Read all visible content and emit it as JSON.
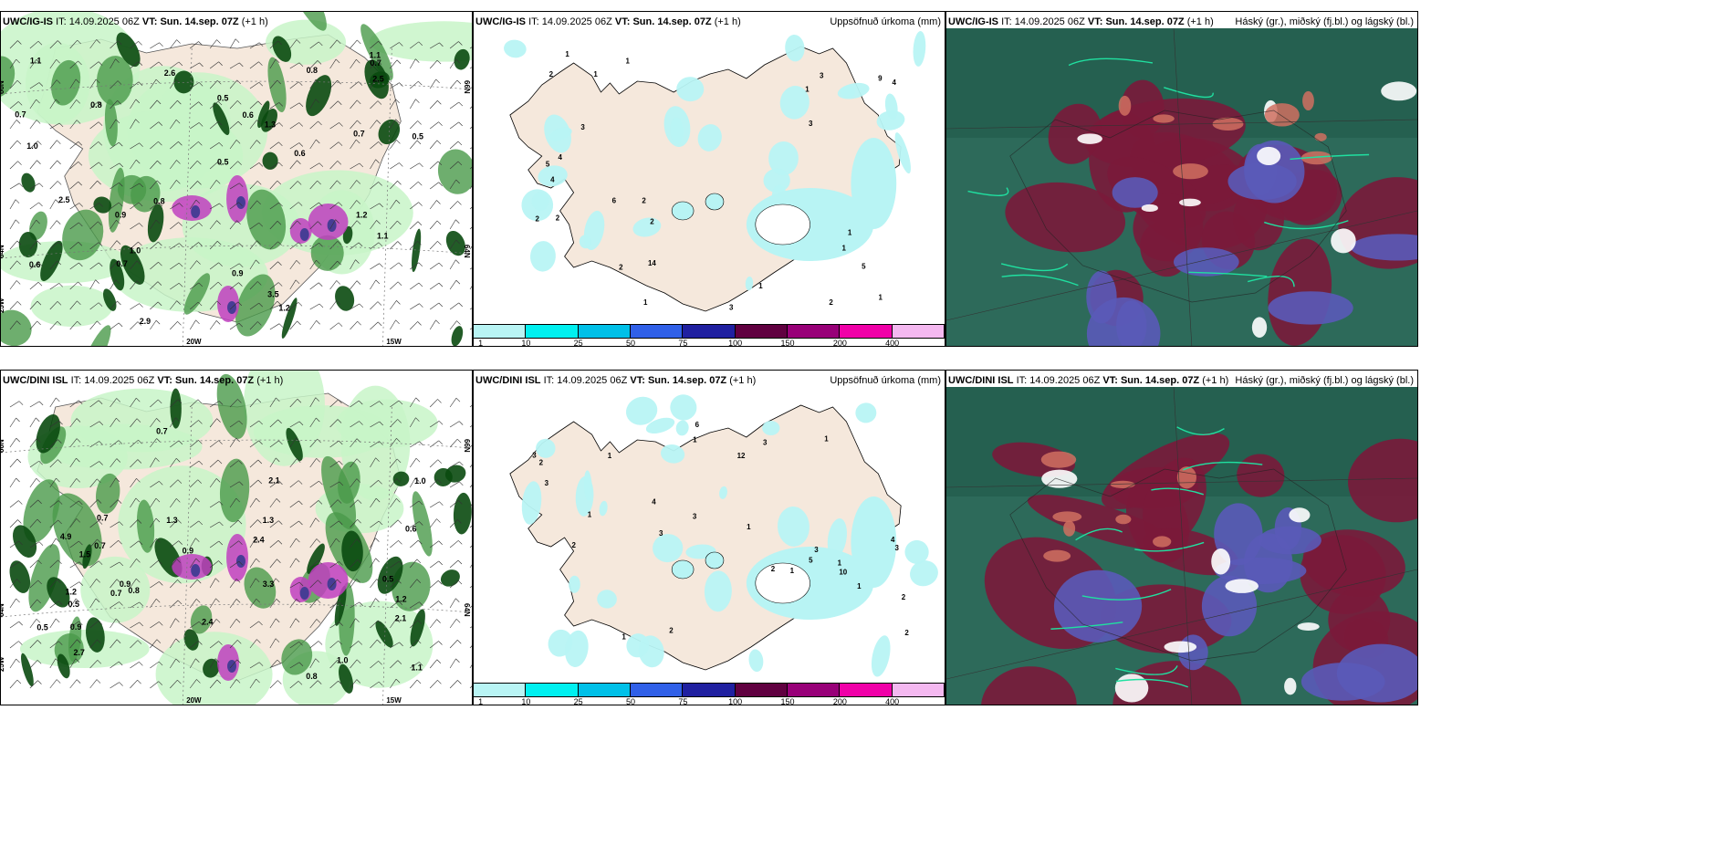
{
  "rows": [
    {
      "model": "UWC/IG-IS",
      "it_label": "IT:",
      "it_value": "14.09.2025 06Z",
      "vt_label": "VT:",
      "vt_value": "Sun. 14.sep. 07Z",
      "lead": "(+1 h)"
    },
    {
      "model": "UWC/DINI ISL",
      "it_label": "IT:",
      "it_value": "14.09.2025 06Z",
      "vt_label": "VT:",
      "vt_value": "Sun. 14.sep. 07Z",
      "lead": "(+1 h)"
    }
  ],
  "precip_title": "Uppsöfnuð úrkoma (mm)",
  "cloud_title": "Háský (gr.), miðský (fj.bl.) og lágský (bl.)",
  "colorbar": {
    "colors": [
      "#b8f4f4",
      "#00f0f0",
      "#00c0e8",
      "#3060e8",
      "#2020a0",
      "#600040",
      "#980078",
      "#f000a8",
      "#f4b8f0"
    ],
    "ticks": [
      "1",
      "10",
      "25",
      "50",
      "75",
      "100",
      "150",
      "200",
      "400"
    ]
  },
  "axis_labels": {
    "lat_66": "66N",
    "lat_64": "64N",
    "lon_25": "25W",
    "lon_20": "20W",
    "lon_15": "15W"
  },
  "colors": {
    "land": "#f5e8dc",
    "light_green": "#c8f4c8",
    "mid_green": "#4a9a4a",
    "dark_green": "#0a4a10",
    "precip_cyan": "#b8f4f4",
    "cloud_teal": "#2d6a5a",
    "cloud_maroon": "#7a1a3a",
    "cloud_blue": "#5a5ab8"
  },
  "wind_labels_top": [
    "2.9",
    "3.5",
    "0.6",
    "0.8",
    "2.6",
    "1.0",
    "0.9",
    "0.6",
    "1.1",
    "2.5",
    "2.5",
    "0.8",
    "1.2",
    "0.9",
    "0.7",
    "0.5",
    "0.8",
    "1.3",
    "1.1",
    "0.7",
    "0.6",
    "0.7",
    "1.1",
    "0.5",
    "1.0",
    "1.2",
    "0.7",
    "0.5"
  ],
  "wind_labels_bottom": [
    "0.7",
    "4.9",
    "2.1",
    "2.4",
    "0.9",
    "1.3",
    "0.5",
    "0.7",
    "2.1",
    "3.3",
    "1.0",
    "0.8",
    "2.7",
    "0.5",
    "1.1",
    "0.9",
    "0.7",
    "0.6",
    "1.2",
    "0.8",
    "2.4",
    "1.0",
    "0.9",
    "0.7",
    "0.5",
    "1.3",
    "1.5",
    "1.2"
  ],
  "precip_labels_top": [
    "1",
    "5",
    "2",
    "2",
    "3",
    "1",
    "2",
    "1",
    "1",
    "1",
    "3",
    "6",
    "4",
    "3",
    "4",
    "3",
    "5",
    "2",
    "1",
    "2",
    "4",
    "2",
    "9",
    "1",
    "14",
    "1",
    "2",
    "1"
  ],
  "precip_labels_bottom": [
    "1",
    "3",
    "2",
    "2",
    "3",
    "1",
    "1",
    "1",
    "3",
    "5",
    "4",
    "3",
    "6",
    "3",
    "2",
    "1",
    "1",
    "2",
    "10",
    "4",
    "3",
    "1",
    "2",
    "2",
    "3",
    "1",
    "12",
    "1"
  ]
}
